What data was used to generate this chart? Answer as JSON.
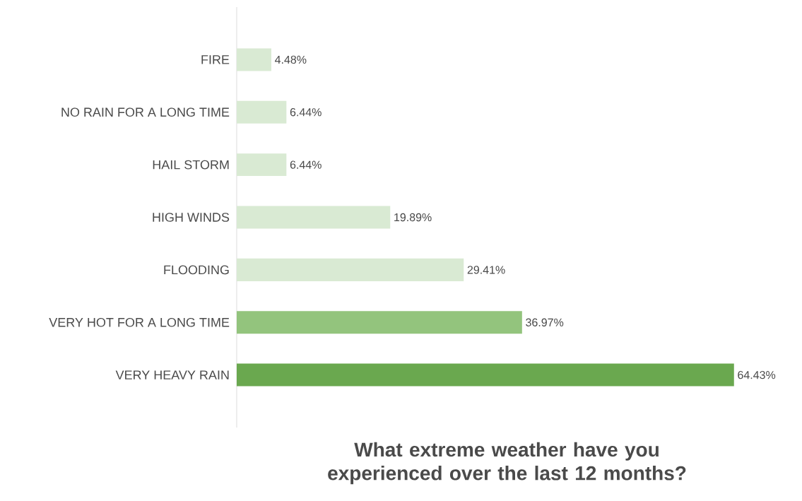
{
  "chart_data": {
    "type": "bar",
    "orientation": "horizontal",
    "title": "What extreme weather have you experienced over the last 12 months?",
    "categories": [
      "FIRE",
      "NO RAIN FOR A LONG TIME",
      "HAIL STORM",
      "HIGH WINDS",
      "FLOODING",
      "VERY HOT FOR A LONG TIME",
      "VERY HEAVY RAIN"
    ],
    "values": [
      4.48,
      6.44,
      6.44,
      19.89,
      29.41,
      36.97,
      64.43
    ],
    "value_labels": [
      "4.48%",
      "6.44%",
      "6.44%",
      "19.89%",
      "29.41%",
      "36.97%",
      "64.43%"
    ],
    "colors": [
      "#d9ead3",
      "#d9ead3",
      "#d9ead3",
      "#d9ead3",
      "#d9ead3",
      "#93c47d",
      "#6aa84f"
    ]
  }
}
